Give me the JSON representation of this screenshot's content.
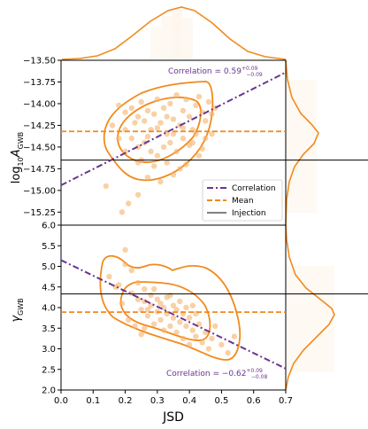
{
  "colors": {
    "orange": "#f28a1c",
    "orange_light": "#f5b26a",
    "purple": "#6a3491",
    "black": "#000000"
  },
  "chart_data": {
    "type": "scatter",
    "shared_x": {
      "label": "JSD",
      "xlim": [
        0.0,
        0.7
      ],
      "ticks": [
        "0.0",
        "0.1",
        "0.2",
        "0.3",
        "0.4",
        "0.5",
        "0.6",
        "0.7"
      ]
    },
    "panels": [
      {
        "id": "top",
        "ylabel_base": "log",
        "ylabel_sub": "10",
        "ylabel_var": "A",
        "ylabel_var_sub": "GWB",
        "ylim": [
          -15.4,
          -13.5
        ],
        "yticks": [
          "-13.50",
          "-13.75",
          "-14.00",
          "-14.25",
          "-14.50",
          "-14.75",
          "-15.00",
          "-15.25"
        ],
        "correlation_text": "Correlation = 0.59",
        "correlation_sup": "+0.09",
        "correlation_sub": "−0.09",
        "mean": -14.32,
        "injection": -14.65,
        "correlation_line": {
          "x": [
            0.0,
            0.7
          ],
          "y": [
            -14.94,
            -13.64
          ]
        },
        "points": [
          [
            0.18,
            -14.02
          ],
          [
            0.2,
            -14.1
          ],
          [
            0.22,
            -14.05
          ],
          [
            0.24,
            -14.15
          ],
          [
            0.25,
            -13.98
          ],
          [
            0.26,
            -14.2
          ],
          [
            0.27,
            -14.08
          ],
          [
            0.28,
            -14.3
          ],
          [
            0.29,
            -14.12
          ],
          [
            0.3,
            -13.95
          ],
          [
            0.31,
            -14.22
          ],
          [
            0.32,
            -14.05
          ],
          [
            0.33,
            -14.35
          ],
          [
            0.34,
            -14.0
          ],
          [
            0.35,
            -14.18
          ],
          [
            0.36,
            -13.9
          ],
          [
            0.37,
            -14.25
          ],
          [
            0.38,
            -14.08
          ],
          [
            0.39,
            -13.95
          ],
          [
            0.4,
            -14.15
          ],
          [
            0.41,
            -14.3
          ],
          [
            0.42,
            -14.02
          ],
          [
            0.43,
            -13.92
          ],
          [
            0.44,
            -14.1
          ],
          [
            0.45,
            -14.2
          ],
          [
            0.46,
            -13.98
          ],
          [
            0.47,
            -14.12
          ],
          [
            0.48,
            -14.05
          ],
          [
            0.2,
            -14.3
          ],
          [
            0.22,
            -14.4
          ],
          [
            0.24,
            -14.5
          ],
          [
            0.26,
            -14.45
          ],
          [
            0.28,
            -14.55
          ],
          [
            0.3,
            -14.6
          ],
          [
            0.32,
            -14.5
          ],
          [
            0.34,
            -14.45
          ],
          [
            0.36,
            -14.55
          ],
          [
            0.38,
            -14.4
          ],
          [
            0.4,
            -14.48
          ],
          [
            0.42,
            -14.35
          ],
          [
            0.25,
            -14.65
          ],
          [
            0.29,
            -14.72
          ],
          [
            0.33,
            -14.68
          ],
          [
            0.37,
            -14.75
          ],
          [
            0.18,
            -14.4
          ],
          [
            0.16,
            -14.25
          ],
          [
            0.2,
            -14.55
          ],
          [
            0.24,
            -14.68
          ],
          [
            0.27,
            -14.85
          ],
          [
            0.31,
            -14.9
          ],
          [
            0.35,
            -14.82
          ],
          [
            0.39,
            -14.7
          ],
          [
            0.43,
            -14.6
          ],
          [
            0.45,
            -14.4
          ],
          [
            0.47,
            -14.35
          ],
          [
            0.21,
            -15.15
          ],
          [
            0.19,
            -15.25
          ],
          [
            0.24,
            -15.05
          ],
          [
            0.14,
            -14.95
          ],
          [
            0.3,
            -14.28
          ],
          [
            0.35,
            -14.35
          ],
          [
            0.23,
            -14.22
          ],
          [
            0.27,
            -14.38
          ],
          [
            0.33,
            -14.15
          ],
          [
            0.38,
            -14.28
          ],
          [
            0.41,
            -14.45
          ],
          [
            0.44,
            -14.52
          ]
        ]
      },
      {
        "id": "bottom",
        "ylabel_var": "γ",
        "ylabel_var_sub": "GWB",
        "ylim": [
          2.0,
          6.0
        ],
        "yticks": [
          "2.0",
          "2.5",
          "3.0",
          "3.5",
          "4.0",
          "4.5",
          "5.0",
          "5.5",
          "6.0"
        ],
        "correlation_text": "Correlation = −0.62",
        "correlation_sup": "+0.09",
        "correlation_sub": "−0.08",
        "mean": 3.89,
        "injection": 4.33,
        "correlation_line": {
          "x": [
            0.0,
            0.7
          ],
          "y": [
            5.15,
            2.52
          ]
        },
        "points": [
          [
            0.15,
            4.75
          ],
          [
            0.18,
            4.55
          ],
          [
            0.2,
            5.05
          ],
          [
            0.2,
            5.4
          ],
          [
            0.22,
            4.9
          ],
          [
            0.22,
            4.35
          ],
          [
            0.24,
            4.2
          ],
          [
            0.24,
            4.6
          ],
          [
            0.25,
            3.95
          ],
          [
            0.26,
            4.15
          ],
          [
            0.26,
            4.45
          ],
          [
            0.27,
            3.8
          ],
          [
            0.28,
            4.05
          ],
          [
            0.28,
            4.3
          ],
          [
            0.29,
            3.6
          ],
          [
            0.3,
            3.9
          ],
          [
            0.3,
            4.2
          ],
          [
            0.31,
            3.7
          ],
          [
            0.32,
            4.0
          ],
          [
            0.32,
            3.45
          ],
          [
            0.33,
            3.85
          ],
          [
            0.33,
            4.25
          ],
          [
            0.34,
            3.55
          ],
          [
            0.35,
            3.75
          ],
          [
            0.35,
            4.05
          ],
          [
            0.36,
            3.4
          ],
          [
            0.36,
            3.95
          ],
          [
            0.37,
            3.65
          ],
          [
            0.38,
            3.85
          ],
          [
            0.38,
            3.25
          ],
          [
            0.39,
            3.55
          ],
          [
            0.4,
            3.75
          ],
          [
            0.4,
            3.1
          ],
          [
            0.41,
            3.45
          ],
          [
            0.42,
            3.3
          ],
          [
            0.42,
            3.85
          ],
          [
            0.43,
            3.6
          ],
          [
            0.44,
            3.15
          ],
          [
            0.45,
            3.4
          ],
          [
            0.46,
            3.0
          ],
          [
            0.47,
            3.25
          ],
          [
            0.48,
            3.55
          ],
          [
            0.5,
            3.1
          ],
          [
            0.52,
            2.9
          ],
          [
            0.54,
            3.3
          ],
          [
            0.23,
            3.55
          ],
          [
            0.25,
            3.35
          ],
          [
            0.27,
            3.95
          ],
          [
            0.29,
            4.45
          ],
          [
            0.31,
            4.1
          ],
          [
            0.34,
            4.3
          ],
          [
            0.37,
            4.15
          ],
          [
            0.39,
            4.0
          ],
          [
            0.41,
            4.05
          ],
          [
            0.21,
            3.7
          ],
          [
            0.19,
            4.1
          ],
          [
            0.17,
            4.5
          ],
          [
            0.26,
            3.5
          ]
        ]
      }
    ]
  }
}
